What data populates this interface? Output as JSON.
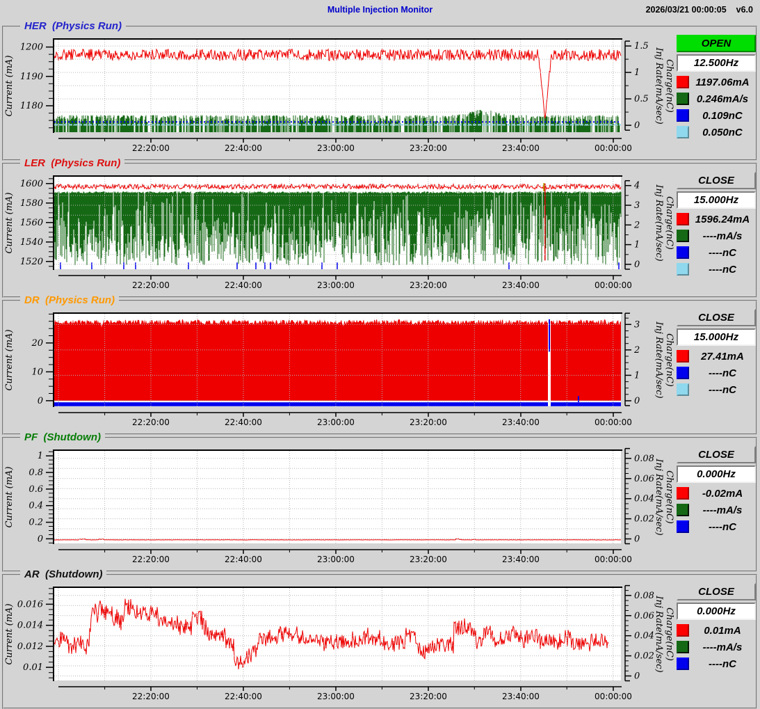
{
  "header": {
    "title": "Multiple Injection Monitor",
    "datetime": "2026/03/21 00:00:05",
    "version": "v6.0"
  },
  "axis_labels": {
    "left": "Current (mA)",
    "right_line1": "Charge(nC)",
    "right_line2": "Inj Rate(mA/sec)"
  },
  "time_axis": {
    "labels": [
      "22:20:00",
      "22:40:00",
      "23:00:00",
      "23:20:00",
      "23:40:00",
      "00:00:00"
    ],
    "fracs": [
      0.1706,
      0.3337,
      0.4969,
      0.6601,
      0.8233,
      0.9865
    ]
  },
  "panels": [
    {
      "name": "HER",
      "title": "HER  (Physics Run)",
      "title_color": "#2222cc",
      "status": {
        "label": "OPEN",
        "bg": "#00dd00"
      },
      "rate": "12.500Hz",
      "legend": [
        {
          "color": "#ff0000",
          "value": "1197.06mA"
        },
        {
          "color": "#156915",
          "value": "0.246mA/s"
        },
        {
          "color": "#0000ee",
          "value": "0.109nC"
        },
        {
          "color": "#8fd8ee",
          "value": "0.050nC"
        }
      ],
      "chart_data": {
        "type": "strip",
        "seed": 11,
        "ylim": [
          1171,
          1202.5
        ],
        "yticks": {
          "values": [
            1180,
            1190,
            1200
          ],
          "labels": [
            "1180",
            "1190",
            "1200"
          ]
        },
        "yminor": 2.5,
        "right": {
          "ylim": [
            -0.13,
            1.62
          ],
          "ticks": [
            0,
            0.5,
            1,
            1.5
          ],
          "labels": [
            "0",
            "0.5",
            "1",
            "1.5"
          ],
          "minor": 0.25
        },
        "hgrid": 0.25,
        "series": [
          {
            "kind": "spikes_up",
            "color": "#156915",
            "top": 1176.8,
            "noise": 4.0,
            "gap": 0.25,
            "bump": {
              "frac": 0.757,
              "amp": 2.0,
              "width": 0.03
            }
          },
          {
            "kind": "dash",
            "color": "#8fd8ee",
            "y": 1173.5,
            "dash": "5 2",
            "w": 2
          },
          {
            "kind": "dash",
            "color": "#0000ee",
            "y": 1174.5,
            "dash": "2 3",
            "w": 2
          },
          {
            "kind": "band",
            "color": "#ee0000",
            "base": 1197.3,
            "amp": 2.0,
            "dip": {
              "frac": 0.866,
              "min": 1175.2,
              "width": 0.011
            }
          }
        ]
      }
    },
    {
      "name": "LER",
      "title": "LER  (Physics Run)",
      "title_color": "#dd1111",
      "status": {
        "label": "CLOSE",
        "bg": "#d4d4d4"
      },
      "rate": "15.000Hz",
      "legend": [
        {
          "color": "#ff0000",
          "value": "1596.24mA"
        },
        {
          "color": "#156915",
          "value": "----mA/s"
        },
        {
          "color": "#0000ee",
          "value": "----nC"
        },
        {
          "color": "#8fd8ee",
          "value": "----nC"
        }
      ],
      "chart_data": {
        "type": "strip",
        "seed": 42,
        "ylim": [
          1512,
          1607
        ],
        "yticks": {
          "values": [
            1520,
            1540,
            1560,
            1580,
            1600
          ],
          "labels": [
            "1520",
            "1540",
            "1560",
            "1580",
            "1600"
          ]
        },
        "yminor": 5,
        "right": {
          "ylim": [
            -0.25,
            4.45
          ],
          "ticks": [
            0,
            1,
            2,
            3,
            4
          ],
          "labels": [
            "0",
            "1",
            "2",
            "3",
            "4"
          ],
          "minor": 0.5
        },
        "hgrid": 0.5,
        "series": [
          {
            "kind": "spikes_down",
            "color": "#156915",
            "top": 1591,
            "min": 1516,
            "gap": 0.04,
            "pow": 0.6,
            "topnoise": 2
          },
          {
            "kind": "bars_bottom",
            "color": "#0000ee",
            "prob": 0.022,
            "to": 1519
          },
          {
            "kind": "band",
            "color": "#ee0000",
            "base": 1596.8,
            "amp": 2.6
          },
          {
            "kind": "vline",
            "color": "#b5a000",
            "frac": 0.8642,
            "y1": 1600.5,
            "y2": 1592,
            "w": 2
          },
          {
            "kind": "vline",
            "color": "#dd0000",
            "frac": 0.866,
            "y1": 1600,
            "y2": 1521,
            "w": 1.5
          }
        ]
      }
    },
    {
      "name": "DR",
      "title": "DR  (Physics Run)",
      "title_color": "#ff9900",
      "status": {
        "label": "CLOSE",
        "bg": "#d4d4d4"
      },
      "rate": "15.000Hz",
      "legend": [
        {
          "color": "#ff0000",
          "value": "27.41mA"
        },
        {
          "color": "#0000ee",
          "value": "----nC"
        },
        {
          "color": "#8fd8ee",
          "value": "----nC"
        }
      ],
      "chart_data": {
        "type": "strip",
        "seed": 7,
        "ylim": [
          -1.95,
          30.1
        ],
        "yticks": {
          "values": [
            0,
            10,
            20
          ],
          "labels": [
            "0",
            "10",
            "20"
          ]
        },
        "yminor": 2.5,
        "right": {
          "ylim": [
            -0.22,
            3.42
          ],
          "ticks": [
            0,
            1,
            2,
            3
          ],
          "labels": [
            "0",
            "1",
            "2",
            "3"
          ],
          "minor": 0.25
        },
        "hgrid": 1.0,
        "series": [
          {
            "kind": "fill",
            "color": "#ee0000",
            "from": 0,
            "top": 27.3,
            "noise": 0.9
          },
          {
            "kind": "hrect",
            "color": "#0000ee",
            "y1": -0.55,
            "y2": -1.9
          },
          {
            "kind": "vgap",
            "frac": 0.8736,
            "w": 4,
            "y1": 29.2,
            "y2": -1.9
          },
          {
            "kind": "vline",
            "color": "#0000ee",
            "frac": 0.8736,
            "y1": 28.2,
            "y2": 17,
            "w": 2
          },
          {
            "kind": "vline",
            "color": "#0000ee",
            "frac": 0.925,
            "y1": 1.6,
            "y2": -0.5,
            "w": 2
          }
        ]
      }
    },
    {
      "name": "PF",
      "title": "PF  (Shutdown)",
      "title_color": "#067d06",
      "status": {
        "label": "CLOSE",
        "bg": "#d4d4d4"
      },
      "rate": "0.000Hz",
      "legend": [
        {
          "color": "#ff0000",
          "value": "-0.02mA"
        },
        {
          "color": "#156915",
          "value": "----mA/s"
        },
        {
          "color": "#0000ee",
          "value": "----nC"
        }
      ],
      "chart_data": {
        "type": "strip",
        "seed": 3,
        "ylim": [
          -0.055,
          1.06
        ],
        "yticks": {
          "values": [
            0,
            0.2,
            0.4,
            0.6,
            0.8,
            1
          ],
          "labels": [
            "0",
            "0.2",
            "0.4",
            "0.6",
            "0.8",
            "1"
          ]
        },
        "yminor": 0.05,
        "right": {
          "ylim": [
            -0.0045,
            0.0875
          ],
          "ticks": [
            0,
            0.02,
            0.04,
            0.06,
            0.08
          ],
          "labels": [
            "0",
            "0.02",
            "0.04",
            "0.06",
            "0.08"
          ],
          "minor": 0.005
        },
        "hgrid": 0.01,
        "series": [
          {
            "kind": "band",
            "color": "#ee0000",
            "base": -0.012,
            "amp": 0.002,
            "blips": [
              {
                "frac": 0.05,
                "amp": 0.014,
                "width": 0.006
              },
              {
                "frac": 0.082,
                "amp": 0.012,
                "width": 0.004
              },
              {
                "frac": 0.713,
                "amp": 0.016,
                "width": 0.005
              },
              {
                "frac": 0.74,
                "amp": 0.01,
                "width": 0.003
              }
            ]
          }
        ]
      }
    },
    {
      "name": "AR",
      "title": "AR  (Shutdown)",
      "title_color": "#111111",
      "status": {
        "label": "CLOSE",
        "bg": "#d4d4d4"
      },
      "rate": "0.000Hz",
      "legend": [
        {
          "color": "#ff0000",
          "value": "0.01mA"
        },
        {
          "color": "#156915",
          "value": "----mA/s"
        },
        {
          "color": "#0000ee",
          "value": "----nC"
        }
      ],
      "chart_data": {
        "type": "strip",
        "seed": 19,
        "ylim": [
          0.00875,
          0.01755
        ],
        "yticks": {
          "values": [
            0.01,
            0.012,
            0.014,
            0.016
          ],
          "labels": [
            "0.01",
            "0.012",
            "0.014",
            "0.016"
          ]
        },
        "yminor": 0.0005,
        "right": {
          "ylim": [
            -0.0045,
            0.0875
          ],
          "ticks": [
            0,
            0.02,
            0.04,
            0.06,
            0.08
          ],
          "labels": [
            "0",
            "0.02",
            "0.04",
            "0.06",
            "0.08"
          ],
          "minor": 0.005
        },
        "hgrid": 0.01,
        "series": [
          {
            "kind": "wander",
            "color": "#ee0000",
            "center": 0.01255,
            "walk": 0.0003,
            "rev": 0.02,
            "jitter": 0.0016,
            "spike": 0.004,
            "lo": 0.01,
            "hi": 0.016,
            "xend": 0.978,
            "bump": {
              "frac": 0.765,
              "amp": 0.002,
              "width": 0.015
            }
          }
        ]
      }
    }
  ]
}
